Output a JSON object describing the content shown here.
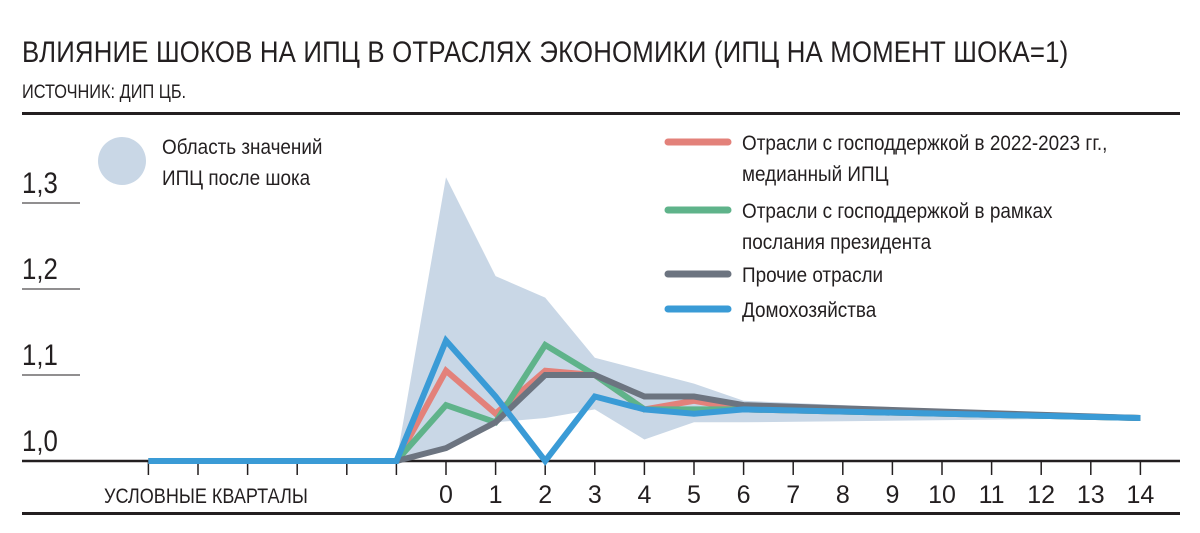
{
  "title": "ВЛИЯНИЕ ШОКОВ НА ИПЦ В ОТРАСЛЯХ ЭКОНОМИКИ (ИПЦ НА МОМЕНТ ШОКА=1)",
  "source": "ИСТОЧНИК: ДИП ЦБ.",
  "colors": {
    "band": "#c9d7e6",
    "red": "#e3817a",
    "green": "#5fb38a",
    "gray": "#6c7480",
    "blue": "#3a9bd6"
  },
  "chart_data": {
    "type": "line",
    "x_label": "УСЛОВНЫЕ КВАРТАЛЫ",
    "x_pre": [
      -5,
      -4,
      -3,
      -2,
      -1
    ],
    "x": [
      -6,
      -5,
      -4,
      -3,
      -2,
      -1,
      0,
      1,
      2,
      3,
      4,
      5,
      6,
      7,
      8,
      9,
      10,
      11,
      12,
      13,
      14
    ],
    "x_tick_labels": [
      "0",
      "1",
      "2",
      "3",
      "4",
      "5",
      "6",
      "7",
      "8",
      "9",
      "10",
      "11",
      "12",
      "13",
      "14"
    ],
    "y_ticks": [
      "1,0",
      "1,1",
      "1,2",
      "1,3"
    ],
    "y_tick_values": [
      1.0,
      1.1,
      1.2,
      1.3
    ],
    "ylim": [
      1.0,
      1.33
    ],
    "band": {
      "name": "Область значений ИПЦ после шока",
      "label_lines": [
        "Область значений",
        "ИПЦ после шока"
      ],
      "upper": [
        [
          -1,
          1.0
        ],
        [
          0,
          1.33
        ],
        [
          1,
          1.215
        ],
        [
          2,
          1.19
        ],
        [
          3,
          1.12
        ],
        [
          4,
          1.105
        ],
        [
          5,
          1.09
        ],
        [
          6,
          1.07
        ],
        [
          14,
          1.05
        ]
      ],
      "lower": [
        [
          14,
          1.05
        ],
        [
          6,
          1.045
        ],
        [
          5,
          1.045
        ],
        [
          4,
          1.025
        ],
        [
          3,
          1.06
        ],
        [
          2,
          1.05
        ],
        [
          1,
          1.045
        ],
        [
          0,
          1.015
        ],
        [
          -1,
          1.0
        ]
      ]
    },
    "series": [
      {
        "name": "Отрасли с господдержкой в 2022-2023 гг., медианный ИПЦ",
        "label_lines": [
          "Отрасли с господдержкой в 2022-2023 гг.,",
          "медианный ИПЦ"
        ],
        "color_key": "red",
        "values": [
          [
            -6,
            1.0
          ],
          [
            -1,
            1.0
          ],
          [
            0,
            1.105
          ],
          [
            1,
            1.055
          ],
          [
            2,
            1.105
          ],
          [
            3,
            1.1
          ],
          [
            4,
            1.06
          ],
          [
            5,
            1.07
          ],
          [
            6,
            1.06
          ],
          [
            14,
            1.05
          ]
        ]
      },
      {
        "name": "Отрасли с господдержкой в рамках послания президента",
        "label_lines": [
          "Отрасли с господдержкой в рамках",
          "послания президента"
        ],
        "color_key": "green",
        "values": [
          [
            -6,
            1.0
          ],
          [
            -1,
            1.0
          ],
          [
            0,
            1.065
          ],
          [
            1,
            1.045
          ],
          [
            2,
            1.135
          ],
          [
            3,
            1.1
          ],
          [
            4,
            1.06
          ],
          [
            5,
            1.06
          ],
          [
            6,
            1.06
          ],
          [
            14,
            1.05
          ]
        ]
      },
      {
        "name": "Прочие отрасли",
        "label_lines": [
          "Прочие отрасли"
        ],
        "color_key": "gray",
        "values": [
          [
            -6,
            1.0
          ],
          [
            -1,
            1.0
          ],
          [
            0,
            1.015
          ],
          [
            1,
            1.045
          ],
          [
            2,
            1.1
          ],
          [
            3,
            1.1
          ],
          [
            4,
            1.075
          ],
          [
            5,
            1.075
          ],
          [
            6,
            1.065
          ],
          [
            14,
            1.05
          ]
        ]
      },
      {
        "name": "Домохозяйства",
        "label_lines": [
          "Домохозяйства"
        ],
        "color_key": "blue",
        "values": [
          [
            -6,
            1.0
          ],
          [
            -1,
            1.0
          ],
          [
            0,
            1.14
          ],
          [
            1,
            1.075
          ],
          [
            2,
            1.0
          ],
          [
            3,
            1.075
          ],
          [
            4,
            1.06
          ],
          [
            5,
            1.055
          ],
          [
            6,
            1.06
          ],
          [
            14,
            1.05
          ]
        ]
      }
    ]
  }
}
